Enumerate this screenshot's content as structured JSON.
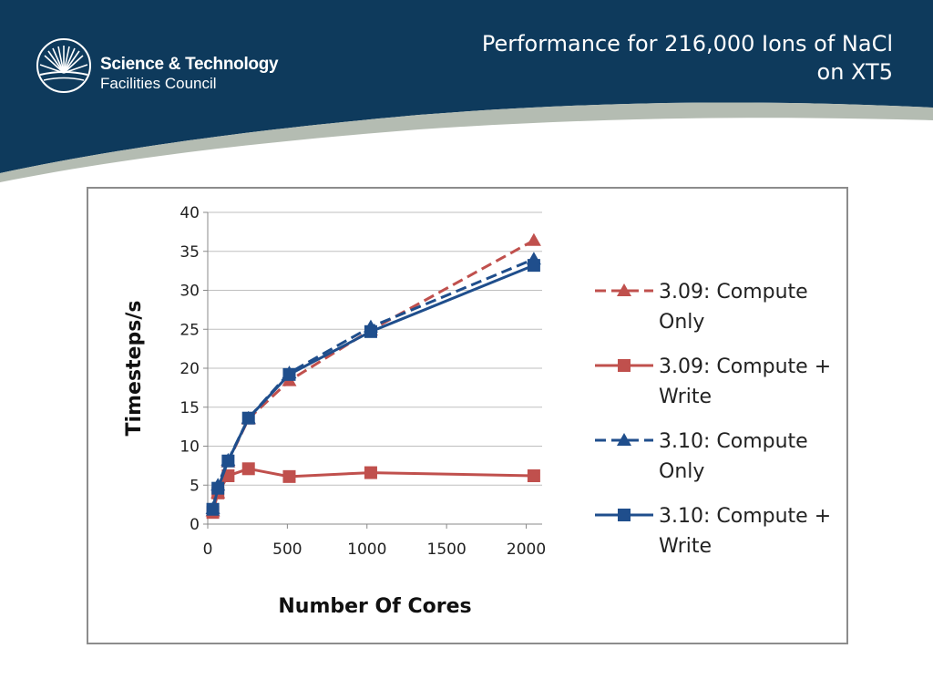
{
  "header": {
    "logo": {
      "line1": "Science & Technology",
      "line2": "Facilities Council"
    },
    "title_line1": "Performance for 216,000 Ions of NaCl",
    "title_line2": "on XT5"
  },
  "colors": {
    "header_blue": "#0e3a5c",
    "header_swoosh": "#b4bcb2",
    "series_red": "#c0504d",
    "series_blue": "#1f4e8c",
    "grid": "#bfbfbf"
  },
  "chart_data": {
    "type": "line",
    "title": "",
    "xlabel": "Number Of Cores",
    "ylabel": "Timesteps/s",
    "xlim": [
      0,
      2100
    ],
    "ylim": [
      0,
      40
    ],
    "x_ticks": [
      0,
      500,
      1000,
      1500,
      2000
    ],
    "y_ticks": [
      0,
      5,
      10,
      15,
      20,
      25,
      30,
      35,
      40
    ],
    "grid": "horizontal",
    "legend_position": "right",
    "series": [
      {
        "name": "3.09: Compute Only",
        "legend_lines": [
          "3.09: Compute",
          "Only"
        ],
        "color": "#c0504d",
        "dash": true,
        "marker": "triangle",
        "x": [
          32,
          64,
          128,
          256,
          512,
          1024,
          2048
        ],
        "y": [
          1.7,
          4.0,
          8.0,
          13.5,
          18.4,
          24.9,
          36.4
        ]
      },
      {
        "name": "3.09: Compute + Write",
        "legend_lines": [
          "3.09: Compute +",
          "Write"
        ],
        "color": "#c0504d",
        "dash": false,
        "marker": "square",
        "x": [
          32,
          64,
          128,
          256,
          512,
          1024,
          2048
        ],
        "y": [
          1.5,
          4.0,
          6.2,
          7.1,
          6.1,
          6.6,
          6.2
        ]
      },
      {
        "name": "3.10: Compute Only",
        "legend_lines": [
          "3.10: Compute",
          "Only"
        ],
        "color": "#1f4e8c",
        "dash": true,
        "marker": "triangle",
        "x": [
          32,
          64,
          128,
          256,
          512,
          1024,
          2048
        ],
        "y": [
          2.0,
          5.0,
          8.2,
          13.6,
          19.4,
          25.3,
          34.0
        ]
      },
      {
        "name": "3.10: Compute + Write",
        "legend_lines": [
          "3.10: Compute +",
          "Write"
        ],
        "color": "#1f4e8c",
        "dash": false,
        "marker": "square",
        "x": [
          32,
          64,
          128,
          256,
          512,
          1024,
          2048
        ],
        "y": [
          1.9,
          4.6,
          8.1,
          13.6,
          19.2,
          24.7,
          33.2
        ]
      }
    ]
  }
}
